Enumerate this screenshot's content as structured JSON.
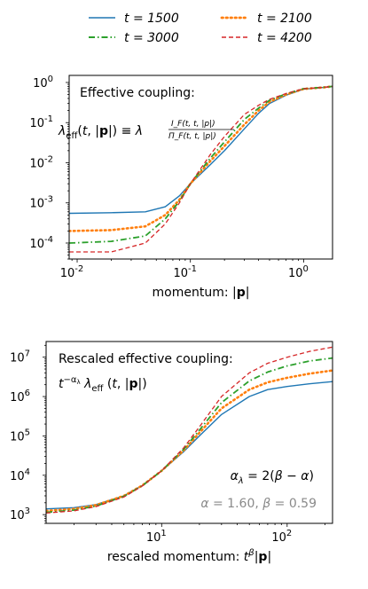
{
  "legend": [
    {
      "label": "t = 1500",
      "color": "#1f77b4",
      "dash": "solid"
    },
    {
      "label": "t = 2100",
      "color": "#ff7f0e",
      "dash": "dotted"
    },
    {
      "label": "t = 3000",
      "color": "#2ca02c",
      "dash": "dashdot"
    },
    {
      "label": "t = 4200",
      "color": "#d62728",
      "dash": "dashed"
    }
  ],
  "chart_data": [
    {
      "type": "line",
      "title": "Effective coupling:",
      "formula": "λ_eff(t, |p|) ≡ λ I_F(t,t,|p|) / Π_F(t,t,|p|)",
      "xlabel": "momentum: |p|",
      "ylabel": "",
      "xscale": "log",
      "yscale": "log",
      "xlim": [
        0.0085,
        1.8
      ],
      "ylim": [
        4e-05,
        1.5
      ],
      "xticks": [
        "10^-2",
        "10^-1",
        "10^0"
      ],
      "yticks": [
        "10^-4",
        "10^-3",
        "10^-2",
        "10^-1",
        "10^0"
      ],
      "series": [
        {
          "name": "t = 1500",
          "color": "#1f77b4",
          "dash": "solid",
          "x": [
            0.0085,
            0.02,
            0.04,
            0.06,
            0.08,
            0.1,
            0.15,
            0.2,
            0.3,
            0.4,
            0.5,
            0.7,
            1.0,
            1.5,
            1.8
          ],
          "y": [
            0.00055,
            0.00057,
            0.0006,
            0.0008,
            0.0015,
            0.003,
            0.009,
            0.02,
            0.07,
            0.17,
            0.3,
            0.48,
            0.68,
            0.75,
            0.8
          ]
        },
        {
          "name": "t = 2100",
          "color": "#ff7f0e",
          "dash": "dotted",
          "x": [
            0.0085,
            0.02,
            0.04,
            0.06,
            0.08,
            0.1,
            0.15,
            0.2,
            0.3,
            0.4,
            0.5,
            0.7,
            1.0,
            1.5,
            1.8
          ],
          "y": [
            0.0002,
            0.00021,
            0.00026,
            0.0005,
            0.0012,
            0.003,
            0.011,
            0.026,
            0.09,
            0.2,
            0.33,
            0.5,
            0.69,
            0.75,
            0.8
          ]
        },
        {
          "name": "t = 3000",
          "color": "#2ca02c",
          "dash": "dashdot",
          "x": [
            0.0085,
            0.02,
            0.04,
            0.06,
            0.08,
            0.1,
            0.15,
            0.2,
            0.3,
            0.4,
            0.5,
            0.7,
            1.0,
            1.5,
            1.8
          ],
          "y": [
            0.0001,
            0.00011,
            0.00015,
            0.0004,
            0.0011,
            0.003,
            0.013,
            0.033,
            0.12,
            0.23,
            0.36,
            0.52,
            0.7,
            0.76,
            0.8
          ]
        },
        {
          "name": "t = 4200",
          "color": "#d62728",
          "dash": "dashed",
          "x": [
            0.0085,
            0.02,
            0.04,
            0.06,
            0.08,
            0.1,
            0.15,
            0.2,
            0.3,
            0.4,
            0.5,
            0.7,
            1.0,
            1.5,
            1.8
          ],
          "y": [
            6e-05,
            6e-05,
            0.0001,
            0.0003,
            0.001,
            0.003,
            0.016,
            0.045,
            0.16,
            0.27,
            0.38,
            0.53,
            0.7,
            0.76,
            0.8
          ]
        }
      ]
    },
    {
      "type": "line",
      "title": "Rescaled effective coupling:",
      "formula": "t^(-α_λ) λ_eff (t, |p|)",
      "annotation1": "α_λ = 2(β − α)",
      "annotation2": "α = 1.60, β = 0.59",
      "xlabel": "rescaled momentum: t^β|p|",
      "ylabel": "",
      "xscale": "log",
      "yscale": "log",
      "xlim": [
        1.2,
        230
      ],
      "ylim": [
        600,
        25000000
      ],
      "xticks": [
        "10^1",
        "10^2"
      ],
      "yticks": [
        "10^3",
        "10^4",
        "10^5",
        "10^6",
        "10^7"
      ],
      "series": [
        {
          "name": "t = 1500",
          "color": "#1f77b4",
          "dash": "solid",
          "x": [
            1.2,
            2,
            3,
            5,
            7,
            10,
            15,
            20,
            30,
            50,
            70,
            100,
            150,
            230
          ],
          "y": [
            1400,
            1500,
            1800,
            3000,
            5500,
            13000,
            40000,
            100000,
            350000,
            1000000,
            1500000,
            1800000,
            2100000,
            2400000
          ]
        },
        {
          "name": "t = 2100",
          "color": "#ff7f0e",
          "dash": "dotted",
          "x": [
            1.2,
            2,
            3,
            5,
            7,
            10,
            15,
            20,
            30,
            50,
            70,
            100,
            150,
            230
          ],
          "y": [
            1250,
            1400,
            1750,
            3000,
            5500,
            13000,
            43000,
            120000,
            500000,
            1500000,
            2300000,
            3000000,
            3800000,
            4600000
          ]
        },
        {
          "name": "t = 3000",
          "color": "#2ca02c",
          "dash": "dashdot",
          "x": [
            1.2,
            2,
            3,
            5,
            7,
            10,
            15,
            20,
            30,
            50,
            70,
            100,
            150,
            230
          ],
          "y": [
            1150,
            1300,
            1650,
            2900,
            5400,
            13000,
            46000,
            140000,
            700000,
            2500000,
            4200000,
            6000000,
            8000000,
            9500000
          ]
        },
        {
          "name": "t = 4200",
          "color": "#d62728",
          "dash": "dashed",
          "x": [
            1.2,
            2,
            3,
            5,
            7,
            10,
            15,
            20,
            30,
            50,
            70,
            100,
            150,
            230
          ],
          "y": [
            1100,
            1250,
            1600,
            2800,
            5300,
            13000,
            50000,
            170000,
            1000000,
            4000000,
            7000000,
            10000000,
            14000000,
            18000000
          ]
        }
      ]
    }
  ]
}
